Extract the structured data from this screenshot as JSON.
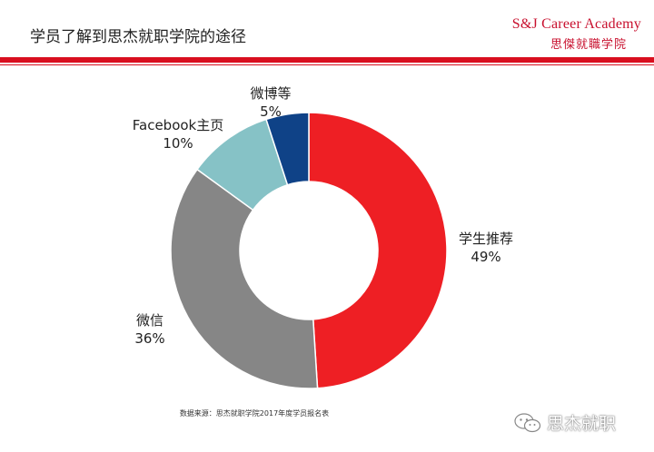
{
  "header": {
    "title": "学员了解到思杰就职学院的途径",
    "brand_en": "S&J Career Academy",
    "brand_zh": "思傑就職学院"
  },
  "colors": {
    "accent_red": "#d90f1f"
  },
  "chart_data": {
    "type": "pie",
    "donut": true,
    "slices": [
      {
        "label": "学生推荐",
        "value": 49,
        "value_label": "49%",
        "color": "#ee1f24"
      },
      {
        "label": "微信",
        "value": 36,
        "value_label": "36%",
        "color": "#868686"
      },
      {
        "label": "Facebook主页",
        "value": 10,
        "value_label": "10%",
        "color": "#86c2c6"
      },
      {
        "label": "微博等",
        "value": 5,
        "value_label": "5%",
        "color": "#0f4287"
      }
    ],
    "legend": "none"
  },
  "footer": {
    "source": "数据来源：思杰就职学院2017年度学员报名表",
    "watermark_text": "思杰就职",
    "watermark_icon": "wechat-icon"
  }
}
